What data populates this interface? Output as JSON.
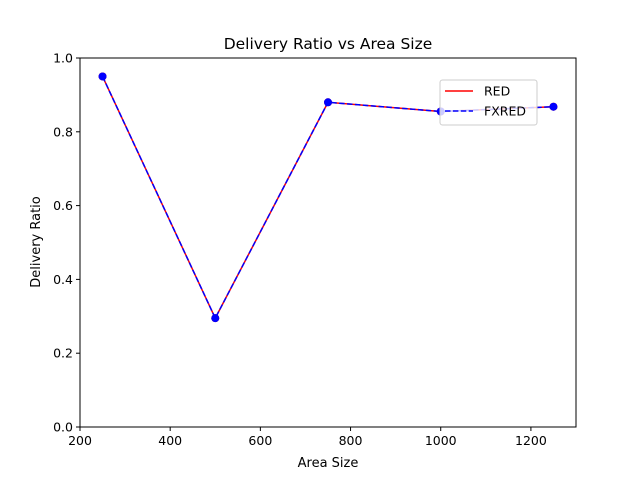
{
  "chart_data": {
    "type": "line",
    "title": "Delivery Ratio vs Area Size",
    "xlabel": "Area Size",
    "ylabel": "Delivery Ratio",
    "xlim": [
      200,
      1300
    ],
    "ylim": [
      0.0,
      1.0
    ],
    "x_ticks": [
      "200",
      "400",
      "600",
      "800",
      "1000",
      "1200"
    ],
    "y_ticks": [
      "0.0",
      "0.2",
      "0.4",
      "0.6",
      "0.8",
      "1.0"
    ],
    "x": [
      250,
      500,
      750,
      1000,
      1250
    ],
    "series": [
      {
        "name": "RED",
        "values": [
          0.95,
          0.295,
          0.88,
          0.855,
          0.868
        ],
        "color": "#ff0000",
        "marker_color": "#ff0000",
        "line_style": "solid"
      },
      {
        "name": "FXRED",
        "values": [
          0.95,
          0.295,
          0.88,
          0.855,
          0.868
        ],
        "color": "#0000ff",
        "marker_color": "#0000ff",
        "line_style": "dashed"
      }
    ],
    "legend_position": "top-right",
    "grid": false
  }
}
